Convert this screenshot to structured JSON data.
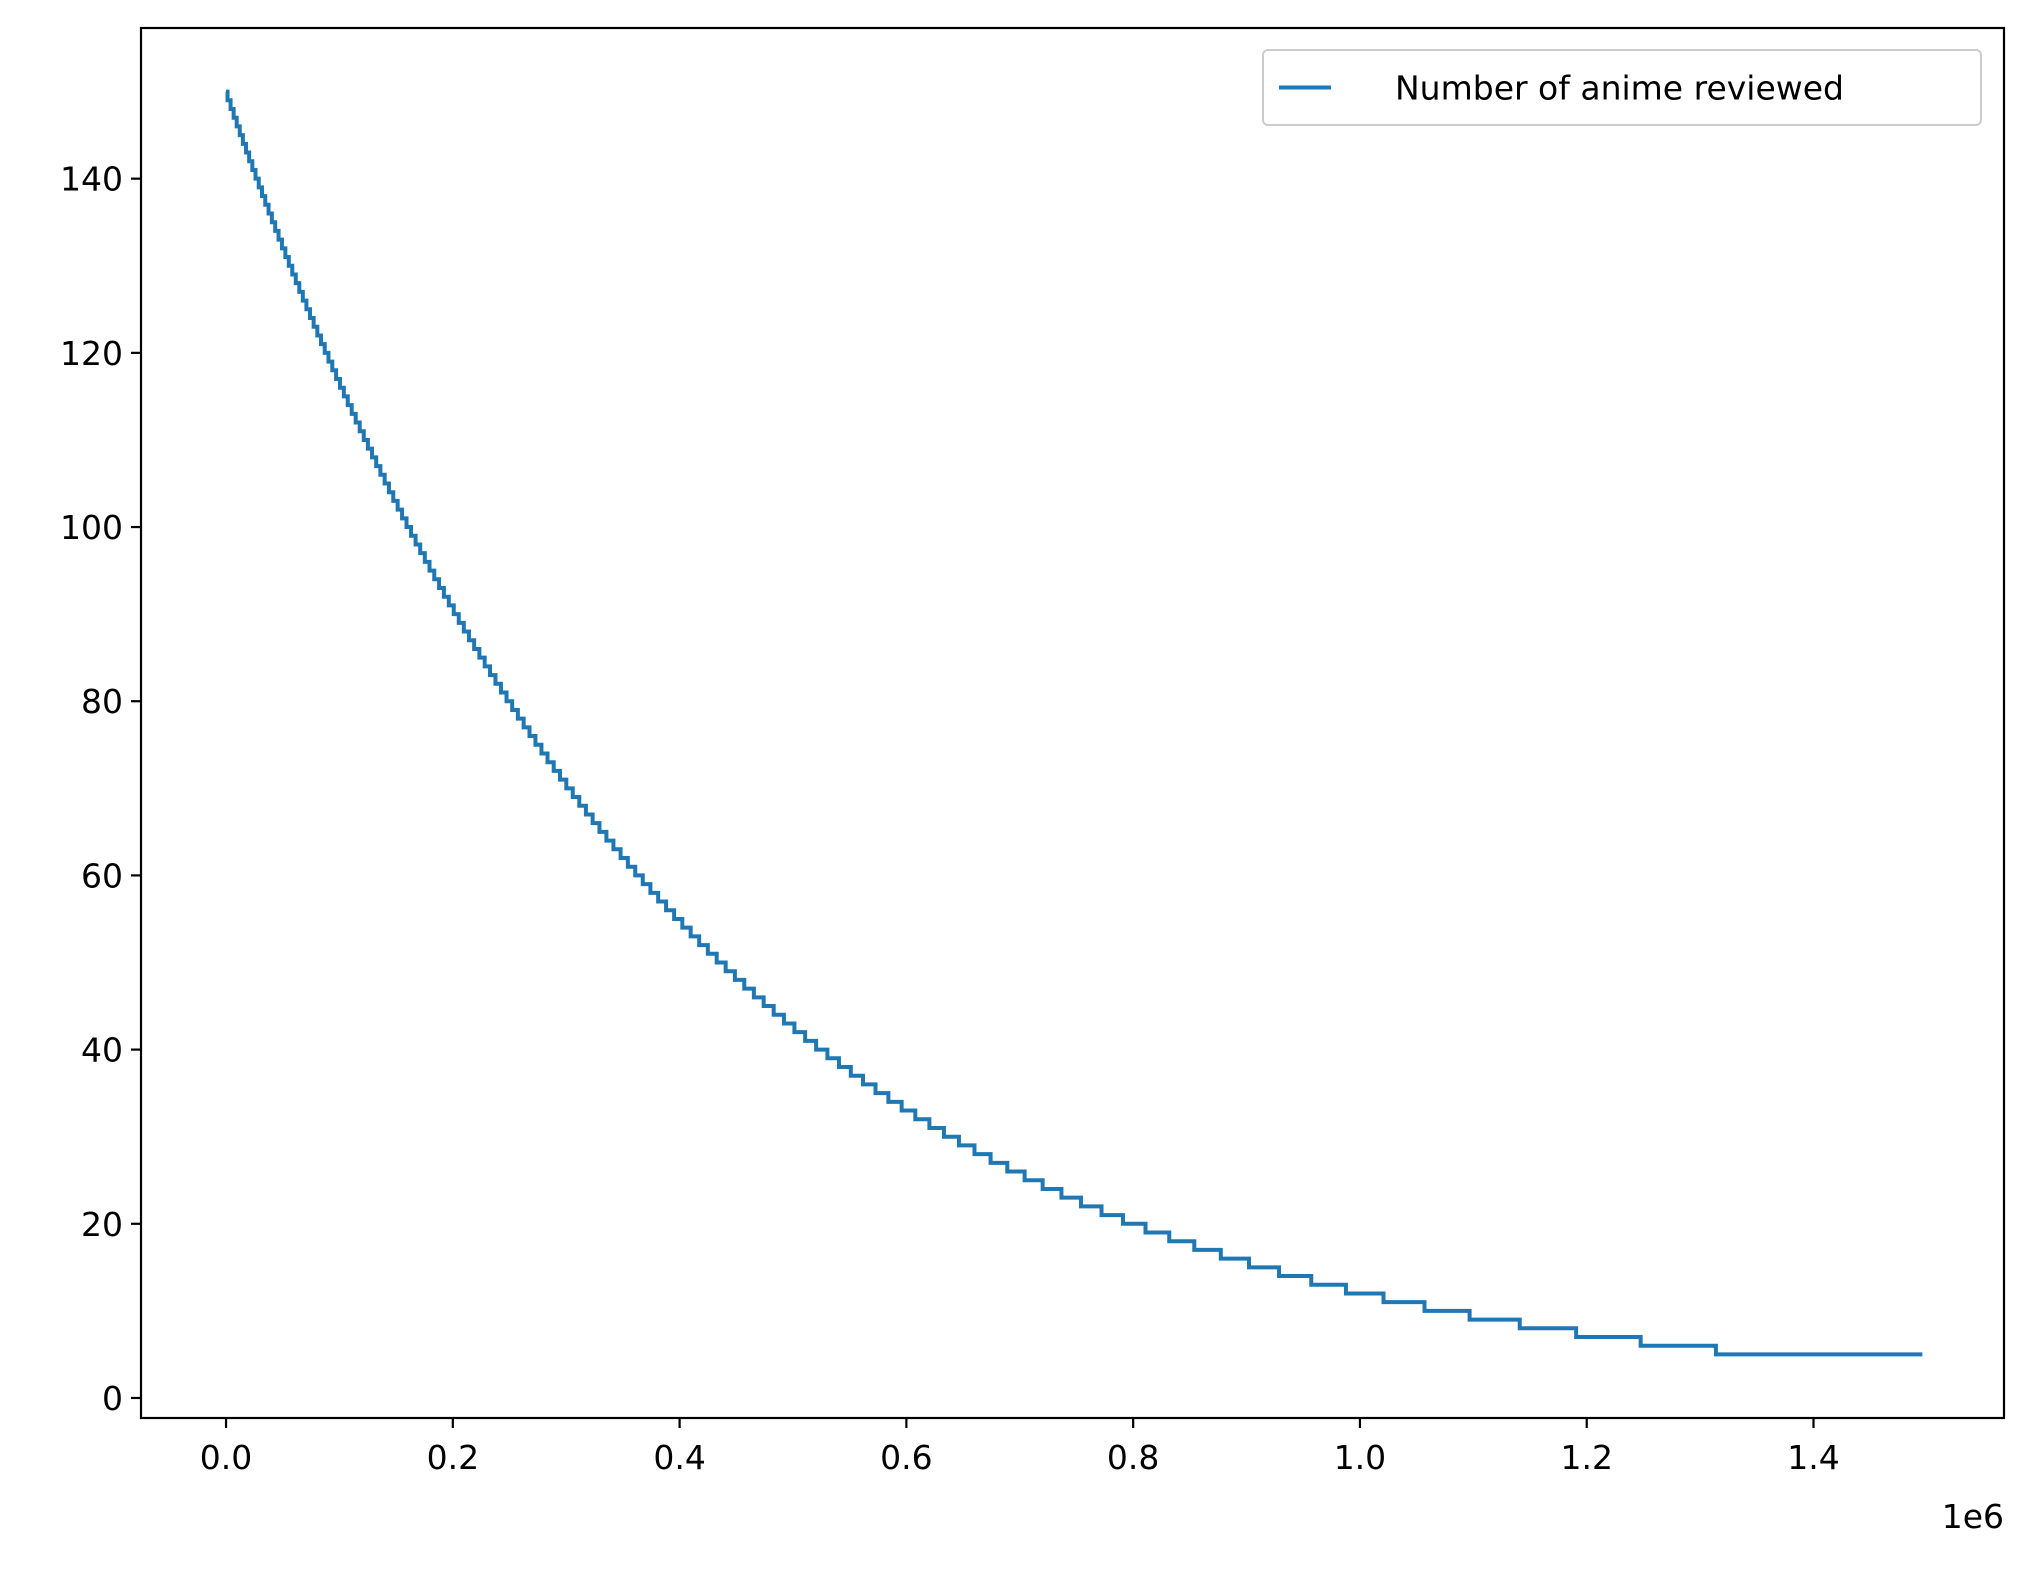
{
  "chart_data": {
    "type": "line",
    "drawstyle": "steps",
    "title": "",
    "xlabel": "",
    "ylabel": "",
    "x_offset_label": "1e6",
    "xlim": [
      -0.075,
      1.568
    ],
    "ylim": [
      -2.3,
      157.3
    ],
    "x_ticks": [
      0.0,
      0.2,
      0.4,
      0.6,
      0.8,
      1.0,
      1.2,
      1.4
    ],
    "x_tick_labels": [
      "0.0",
      "0.2",
      "0.4",
      "0.6",
      "0.8",
      "1.0",
      "1.2",
      "1.4"
    ],
    "y_ticks": [
      0,
      20,
      40,
      60,
      80,
      100,
      120,
      140
    ],
    "y_tick_labels": [
      "0",
      "20",
      "40",
      "60",
      "80",
      "100",
      "120",
      "140"
    ],
    "grid": false,
    "legend_position": "upper right",
    "series": [
      {
        "name": "Number of anime reviewed",
        "color": "#1f77b4",
        "x_start": 0.0,
        "x_end": 1.496,
        "y_start": 150,
        "y_end": 5,
        "decay_per_1e6": 2.516,
        "step": 1
      }
    ]
  }
}
